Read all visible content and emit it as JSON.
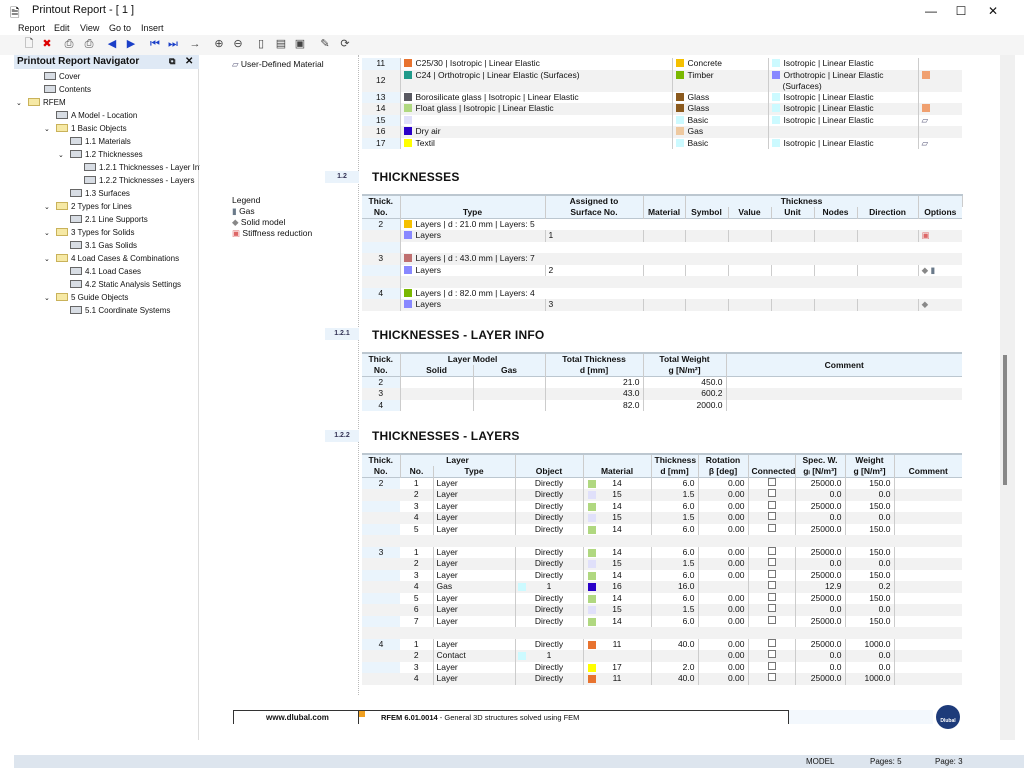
{
  "window": {
    "title": "Printout Report - [ 1 ]",
    "minimize": "—",
    "maximize": "☐",
    "close": "✕"
  },
  "menu": [
    "Report",
    "Edit",
    "View",
    "Go to",
    "Insert"
  ],
  "toolbar": [
    "new-report-icon",
    "delete-report-icon",
    "print-icon",
    "print-options-icon",
    "previous-page-icon",
    "next-page-icon",
    "first-page-icon",
    "last-page-icon",
    "go-to-page-icon",
    "zoom-in-icon",
    "zoom-out-icon",
    "page-view-icon",
    "selection-icon",
    "insert-graphic-icon",
    "edit-icon",
    "refresh-icon"
  ],
  "navigator": {
    "title": "Printout Report Navigator",
    "items": [
      {
        "label": "Cover",
        "level": 0,
        "icon": "cover-icon"
      },
      {
        "label": "Contents",
        "level": 0,
        "icon": "contents-icon"
      },
      {
        "label": "RFEM",
        "level": 0,
        "icon": "folder-icon",
        "expanded": true
      },
      {
        "label": "A Model - Location",
        "level": 1,
        "icon": "table-icon"
      },
      {
        "label": "1 Basic Objects",
        "level": 1,
        "icon": "folder-icon",
        "expanded": true
      },
      {
        "label": "1.1 Materials",
        "level": 2,
        "icon": "table-icon"
      },
      {
        "label": "1.2 Thicknesses",
        "level": 2,
        "icon": "table-icon",
        "expanded": true
      },
      {
        "label": "1.2.1 Thicknesses - Layer Info",
        "level": 3,
        "icon": "table-icon"
      },
      {
        "label": "1.2.2 Thicknesses - Layers",
        "level": 3,
        "icon": "table-icon"
      },
      {
        "label": "1.3 Surfaces",
        "level": 2,
        "icon": "table-icon"
      },
      {
        "label": "2 Types for Lines",
        "level": 1,
        "icon": "folder-icon",
        "expanded": true
      },
      {
        "label": "2.1 Line Supports",
        "level": 2,
        "icon": "table-icon"
      },
      {
        "label": "3 Types for Solids",
        "level": 1,
        "icon": "folder-icon",
        "expanded": true
      },
      {
        "label": "3.1 Gas Solids",
        "level": 2,
        "icon": "table-icon"
      },
      {
        "label": "4 Load Cases & Combinations",
        "level": 1,
        "icon": "folder-icon",
        "expanded": true
      },
      {
        "label": "4.1 Load Cases",
        "level": 2,
        "icon": "table-icon"
      },
      {
        "label": "4.2 Static Analysis Settings",
        "level": 2,
        "icon": "table-icon"
      },
      {
        "label": "5 Guide Objects",
        "level": 1,
        "icon": "folder-icon",
        "expanded": true
      },
      {
        "label": "5.1 Coordinate Systems",
        "level": 2,
        "icon": "table-icon"
      }
    ]
  },
  "materials": {
    "legend_item": "User-Defined Material",
    "rows": [
      {
        "no": "11",
        "name": "C25/30 | Isotropic | Linear Elastic",
        "color": "#e8732f",
        "type": "Concrete",
        "type_color": "#f5c000",
        "model": "Isotropic | Linear Elastic",
        "model_color": "#ccfaff",
        "opt": ""
      },
      {
        "no": "12",
        "name": "C24 | Orthotropic | Linear Elastic (Surfaces)",
        "color": "#1f9a8a",
        "type": "Timber",
        "type_color": "#7ab800",
        "model": "Orthotropic | Linear Elastic (Surfaces)",
        "model_color": "#8888ff",
        "opt": "pattern"
      },
      {
        "no": "13",
        "name": "Borosilicate glass | Isotropic | Linear Elastic",
        "color": "#5a5a62",
        "type": "Glass",
        "type_color": "#8b5a1e",
        "model": "Isotropic | Linear Elastic",
        "model_color": "#ccfaff",
        "opt": ""
      },
      {
        "no": "14",
        "name": "Float glass | Isotropic | Linear Elastic",
        "color": "#b0d880",
        "type": "Glass",
        "type_color": "#8b5a1e",
        "model": "Isotropic | Linear Elastic",
        "model_color": "#ccfaff",
        "opt": "pattern"
      },
      {
        "no": "15",
        "name": "",
        "color": "#e0e0fa",
        "type": "Basic",
        "type_color": "#ccfaff",
        "model": "Isotropic | Linear Elastic",
        "model_color": "#ccfaff",
        "opt": "user"
      },
      {
        "no": "16",
        "name": "Dry air",
        "color": "#2a00c8",
        "type": "Gas",
        "type_color": "#eec9a0",
        "model": "",
        "model_color": "",
        "opt": ""
      },
      {
        "no": "17",
        "name": "Textil",
        "color": "#ffff00",
        "type": "Basic",
        "type_color": "#ccfaff",
        "model": "Isotropic | Linear Elastic",
        "model_color": "#ccfaff",
        "opt": "user"
      }
    ]
  },
  "thicknesses": {
    "number": "1.2",
    "title": "THICKNESSES",
    "legend": {
      "title": "Legend",
      "items": [
        "Gas",
        "Solid model",
        "Stiffness reduction"
      ]
    },
    "headers": {
      "no1": "Thick.",
      "no2": "No.",
      "type": "Type",
      "assigned1": "Assigned to",
      "assigned2": "Surface No.",
      "material": "Material",
      "thickness": "Thickness",
      "symbol": "Symbol",
      "value": "Value",
      "unit": "Unit",
      "nodes": "Nodes",
      "direction": "Direction",
      "options": "Options"
    },
    "rows": [
      {
        "no": "2",
        "type": "Layers | d : 21.0 mm | Layers: 5",
        "color": "#f5c000",
        "sub": "Layers",
        "sub_color": "#8888ff",
        "surface": "1",
        "options": [
          "stiffness-reduction"
        ]
      },
      {
        "no": "3",
        "type": "Layers | d : 43.0 mm | Layers: 7",
        "color": "#c07070",
        "sub": "Layers",
        "sub_color": "#8888ff",
        "surface": "2",
        "options": [
          "solid-model",
          "gas"
        ]
      },
      {
        "no": "4",
        "type": "Layers | d : 82.0 mm | Layers: 4",
        "color": "#7ab800",
        "sub": "Layers",
        "sub_color": "#8888ff",
        "surface": "3",
        "options": [
          "solid-model"
        ]
      }
    ]
  },
  "layer_info": {
    "number": "1.2.1",
    "title": "THICKNESSES - LAYER INFO",
    "headers": {
      "no1": "Thick.",
      "no2": "No.",
      "model": "Layer Model",
      "solid": "Solid",
      "gas": "Gas",
      "tt1": "Total Thickness",
      "tt2": "d [mm]",
      "tw1": "Total Weight",
      "tw2": "g [N/m²]",
      "comment": "Comment"
    },
    "rows": [
      {
        "no": "2",
        "d": "21.0",
        "g": "450.0"
      },
      {
        "no": "3",
        "d": "43.0",
        "g": "600.2"
      },
      {
        "no": "4",
        "d": "82.0",
        "g": "2000.0"
      }
    ]
  },
  "layers": {
    "number": "1.2.2",
    "title": "THICKNESSES - LAYERS",
    "headers": {
      "no1": "Thick.",
      "no2": "No.",
      "layer": "Layer",
      "lno": "No.",
      "type": "Type",
      "object": "Object",
      "material": "Material",
      "t1": "Thickness",
      "t2": "d [mm]",
      "r1": "Rotation",
      "r2": "β [deg]",
      "connected": "Connected",
      "s1": "Spec. W.",
      "s2": "gₗ [N/m³]",
      "w1": "Weight",
      "w2": "g [N/m²]",
      "comment": "Comment"
    },
    "groups": [
      {
        "no": "2",
        "rows": [
          [
            "1",
            "Layer",
            "Directly",
            "",
            "14",
            "#b0d880",
            "6.0",
            "0.00",
            "25000.0",
            "150.0"
          ],
          [
            "2",
            "Layer",
            "Directly",
            "",
            "15",
            "#e0e0fa",
            "1.5",
            "0.00",
            "0.0",
            "0.0"
          ],
          [
            "3",
            "Layer",
            "Directly",
            "",
            "14",
            "#b0d880",
            "6.0",
            "0.00",
            "25000.0",
            "150.0"
          ],
          [
            "4",
            "Layer",
            "Directly",
            "",
            "15",
            "#e0e0fa",
            "1.5",
            "0.00",
            "0.0",
            "0.0"
          ],
          [
            "5",
            "Layer",
            "Directly",
            "",
            "14",
            "#b0d880",
            "6.0",
            "0.00",
            "25000.0",
            "150.0"
          ]
        ]
      },
      {
        "no": "3",
        "rows": [
          [
            "1",
            "Layer",
            "Directly",
            "",
            "14",
            "#b0d880",
            "6.0",
            "0.00",
            "25000.0",
            "150.0"
          ],
          [
            "2",
            "Layer",
            "Directly",
            "",
            "15",
            "#e0e0fa",
            "1.5",
            "0.00",
            "0.0",
            "0.0"
          ],
          [
            "3",
            "Layer",
            "Directly",
            "",
            "14",
            "#b0d880",
            "6.0",
            "0.00",
            "25000.0",
            "150.0"
          ],
          [
            "4",
            "Gas",
            "1",
            "#ccfaff",
            "16",
            "#2a00c8",
            "16.0",
            "",
            "12.9",
            "0.2"
          ],
          [
            "5",
            "Layer",
            "Directly",
            "",
            "14",
            "#b0d880",
            "6.0",
            "0.00",
            "25000.0",
            "150.0"
          ],
          [
            "6",
            "Layer",
            "Directly",
            "",
            "15",
            "#e0e0fa",
            "1.5",
            "0.00",
            "0.0",
            "0.0"
          ],
          [
            "7",
            "Layer",
            "Directly",
            "",
            "14",
            "#b0d880",
            "6.0",
            "0.00",
            "25000.0",
            "150.0"
          ]
        ]
      },
      {
        "no": "4",
        "rows": [
          [
            "1",
            "Layer",
            "Directly",
            "",
            "11",
            "#e8732f",
            "40.0",
            "0.00",
            "25000.0",
            "1000.0"
          ],
          [
            "2",
            "Contact",
            "1",
            "#ccfaff",
            "",
            "",
            "",
            "0.00",
            "0.0",
            "0.0"
          ],
          [
            "3",
            "Layer",
            "Directly",
            "",
            "17",
            "#ffff00",
            "2.0",
            "0.00",
            "0.0",
            "0.0"
          ],
          [
            "4",
            "Layer",
            "Directly",
            "",
            "11",
            "#e8732f",
            "40.0",
            "0.00",
            "25000.0",
            "1000.0"
          ]
        ]
      }
    ]
  },
  "footer": {
    "website": "www.dlubal.com",
    "product": "RFEM 6.01.0014",
    "description": " - General 3D structures solved using FEM",
    "logo": "Dlubal"
  },
  "status": {
    "mode": "MODEL",
    "pages": "Pages: 5",
    "page": "Page: 3"
  }
}
